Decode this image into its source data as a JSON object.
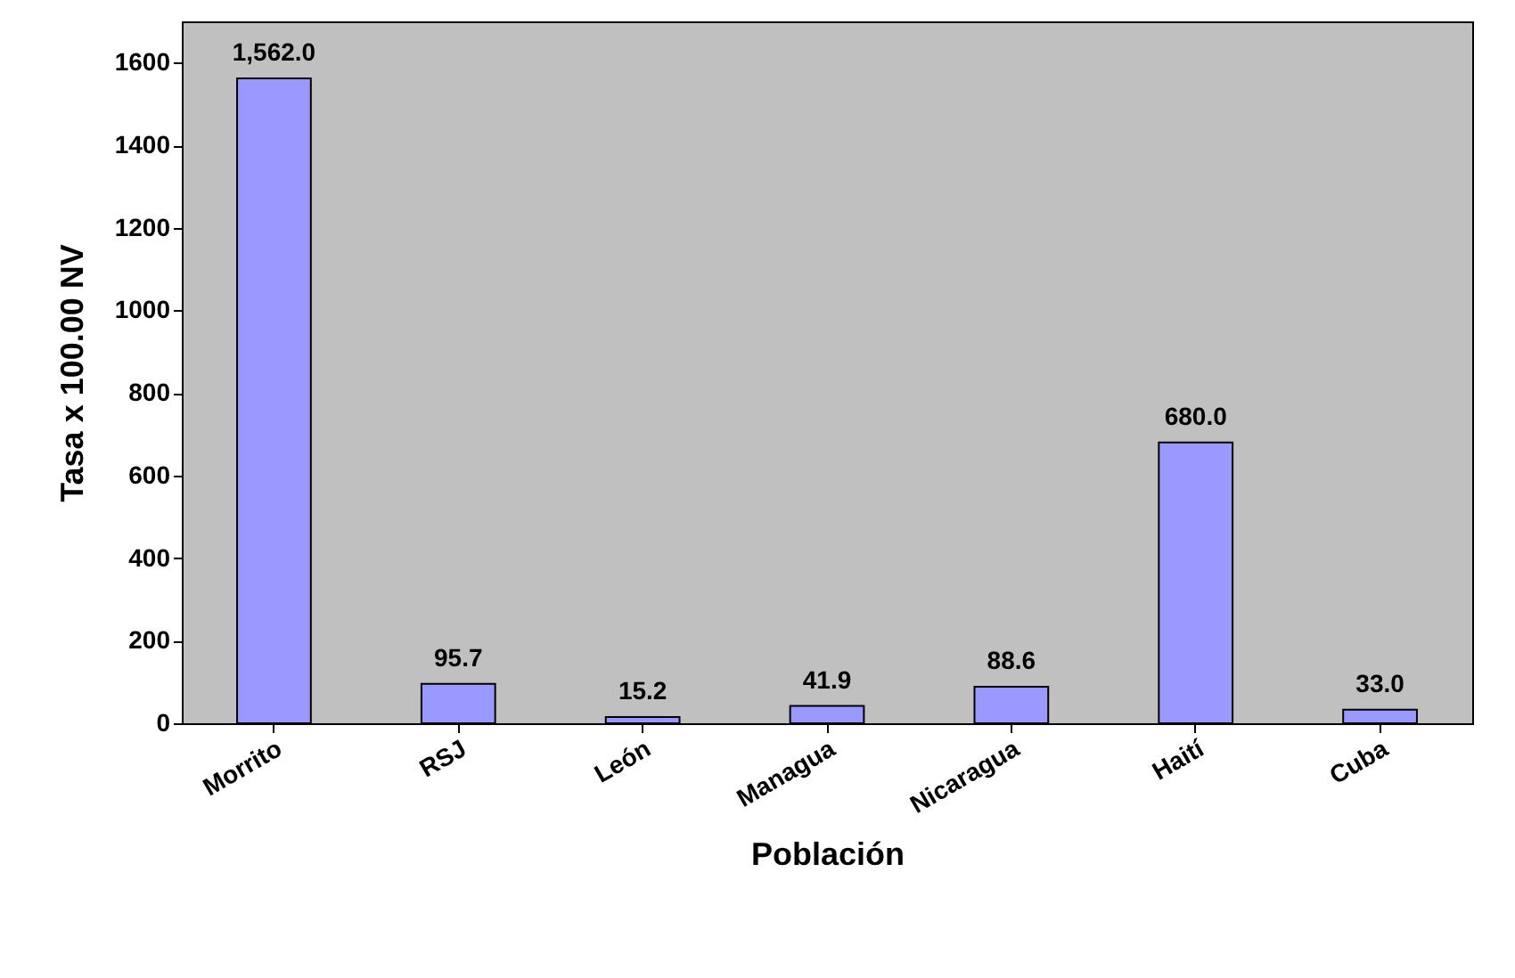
{
  "chart_data": {
    "type": "bar",
    "xlabel": "Población",
    "ylabel": "Tasa x 100.00 NV",
    "categories": [
      "Morrito",
      "RSJ",
      "León",
      "Managua",
      "Nicaragua",
      "Haití",
      "Cuba"
    ],
    "values": [
      1562.0,
      95.7,
      15.2,
      41.9,
      88.6,
      680.0,
      33.0
    ],
    "value_labels": [
      "1,562.0",
      "95.7",
      "15.2",
      "41.9",
      "88.6",
      "680.0",
      "33.0"
    ],
    "color": "#9999ff",
    "ylim": [
      0,
      1700
    ],
    "yticks": [
      0,
      200,
      400,
      600,
      800,
      1000,
      1200,
      1400,
      1600
    ],
    "grid": false
  }
}
